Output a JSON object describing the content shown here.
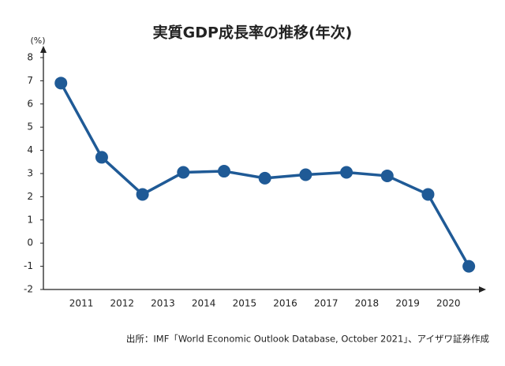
{
  "chart_data": {
    "type": "line",
    "title": "実質GDP成長率の推移(年次)",
    "y_label": "(%)",
    "source": "出所：IMF「World Economic Outlook Database, October 2021」、アイザワ証券作成",
    "x": [
      2010.5,
      2011.5,
      2012.5,
      2013.5,
      2014.5,
      2015.5,
      2016.5,
      2017.5,
      2018.5,
      2019.5,
      2020.5
    ],
    "series": [
      {
        "name": "実質GDP成長率",
        "color": "#1f5a96",
        "values": [
          6.9,
          3.7,
          2.1,
          3.05,
          3.1,
          2.8,
          2.95,
          3.05,
          2.9,
          2.1,
          -1.0
        ]
      }
    ],
    "xlim": [
      2010.07,
      2021.0
    ],
    "xticks": [
      2011,
      2012,
      2013,
      2014,
      2015,
      2016,
      2017,
      2018,
      2019,
      2020
    ],
    "ylim": [
      -2,
      8
    ],
    "yticks": [
      -2,
      -1,
      0,
      1,
      2,
      3,
      4,
      5,
      6,
      7,
      8
    ]
  }
}
